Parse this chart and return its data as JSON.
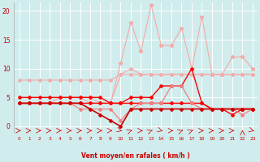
{
  "x": [
    0,
    1,
    2,
    3,
    4,
    5,
    6,
    7,
    8,
    9,
    10,
    11,
    12,
    13,
    14,
    15,
    16,
    17,
    18,
    19,
    20,
    21,
    22,
    23
  ],
  "line_pk1": [
    8,
    8,
    8,
    8,
    8,
    8,
    8,
    8,
    8,
    8,
    9,
    9,
    9,
    9,
    9,
    9,
    9,
    9,
    9,
    9,
    9,
    9,
    9,
    9
  ],
  "line_pk2": [
    4,
    4,
    4,
    4,
    5,
    5,
    5,
    4,
    4,
    4,
    9,
    10,
    9,
    9,
    9,
    9,
    9,
    9,
    9,
    9,
    9,
    9,
    9,
    9
  ],
  "line_pk3": [
    4,
    4,
    4,
    4,
    5,
    5,
    5,
    5,
    4,
    4,
    11,
    18,
    13,
    21,
    14,
    14,
    17,
    10,
    19,
    9,
    9,
    12,
    12,
    10
  ],
  "line_r1": [
    5,
    5,
    5,
    5,
    5,
    5,
    5,
    5,
    5,
    4,
    4,
    5,
    5,
    5,
    7,
    7,
    7,
    10,
    4,
    3,
    3,
    2,
    3,
    3
  ],
  "line_r2": [
    4,
    4,
    4,
    4,
    4,
    4,
    4,
    4,
    4,
    4,
    4,
    4,
    4,
    4,
    4,
    4,
    4,
    4,
    4,
    3,
    3,
    3,
    3,
    3
  ],
  "line_r3": [
    4,
    4,
    4,
    4,
    4,
    4,
    3,
    3,
    3,
    3,
    1,
    3,
    4,
    4,
    4,
    7,
    7,
    4,
    3,
    3,
    3,
    3,
    2,
    3
  ],
  "line_dk": [
    4,
    4,
    4,
    4,
    4,
    4,
    4,
    3,
    2,
    1,
    0,
    3,
    3,
    3,
    3,
    3,
    3,
    3,
    3,
    3,
    3,
    3,
    3,
    3
  ],
  "cpink": "#f08080",
  "clpink": "#f4aaaa",
  "cred": "#ff0000",
  "cdred": "#cc0000",
  "bg": "#d0ecec",
  "grid": "#ffffff",
  "xlabel": "Vent moyen/en rafales ( km/h )",
  "yticks": [
    0,
    5,
    10,
    15,
    20
  ],
  "xlim": [
    -0.5,
    23.5
  ],
  "ylim": [
    -1.2,
    21.5
  ],
  "arrow_angles": [
    90,
    90,
    90,
    90,
    90,
    90,
    90,
    90,
    90,
    90,
    130,
    45,
    90,
    45,
    130,
    90,
    45,
    45,
    90,
    90,
    90,
    90,
    0,
    130
  ]
}
